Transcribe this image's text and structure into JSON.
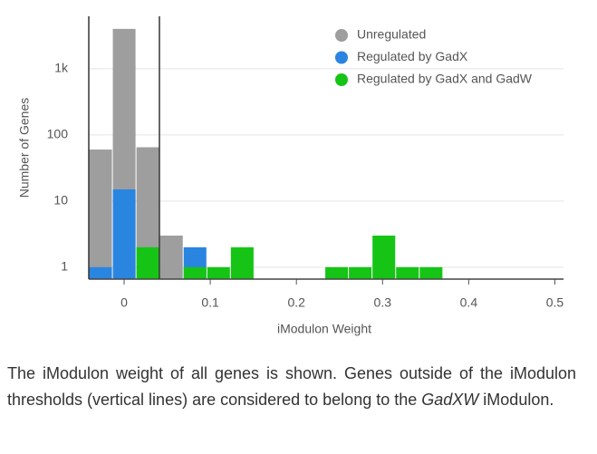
{
  "chart_data": {
    "type": "histogram",
    "y_label": "Number of Genes",
    "x_label": "iModulon Weight",
    "bins": [
      -0.041,
      -0.0136,
      0.0138,
      0.0412,
      0.0686,
      0.096,
      0.1234,
      0.1508,
      0.1782,
      0.2056,
      0.233,
      0.2604,
      0.2878,
      0.3152,
      0.3426,
      0.37
    ],
    "series": [
      {
        "name": "Unregulated",
        "color": "#9e9e9e",
        "values": [
          60,
          4000,
          65,
          3,
          0,
          0,
          0,
          0,
          0,
          0,
          0,
          0,
          0,
          0,
          0
        ]
      },
      {
        "name": "Regulated by GadX",
        "color": "#2a85e0",
        "values": [
          1,
          15,
          0,
          0,
          2,
          0,
          0,
          0,
          0,
          0,
          0,
          0,
          0,
          0,
          0
        ]
      },
      {
        "name": "Regulated by GadX and GadW",
        "color": "#16c416",
        "values": [
          0,
          0,
          2,
          0,
          1,
          1,
          2,
          0,
          0,
          0,
          1,
          1,
          3,
          1,
          1
        ]
      }
    ],
    "thresholds": [
      -0.041,
      0.041
    ],
    "xlim": [
      -0.041,
      0.51
    ],
    "xticks": [
      0,
      0.1,
      0.2,
      0.3,
      0.4,
      0.5
    ],
    "ylim": [
      0.66,
      6200
    ],
    "yticks": [
      1,
      10,
      100,
      {
        "value": 1000,
        "label": "1k"
      }
    ],
    "log_y": true,
    "grid": true,
    "legend": "top-right"
  },
  "caption": {
    "text": "The iModulon weight of all genes is shown. Genes outside of the iModulon thresholds (vertical lines) are considered to belong to the ",
    "emphasis": "GadXW",
    "end": " iModulon."
  }
}
